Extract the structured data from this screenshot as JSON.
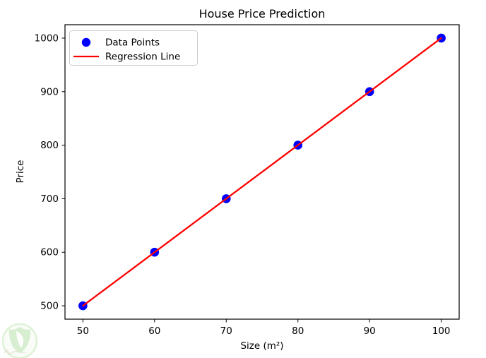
{
  "chart_data": {
    "type": "scatter",
    "title": "House Price Prediction",
    "xlabel": "Size (m²)",
    "ylabel": "Price",
    "x_ticks": [
      50,
      60,
      70,
      80,
      90,
      100
    ],
    "y_ticks": [
      500,
      600,
      700,
      800,
      900,
      1000
    ],
    "xlim": [
      47.5,
      102.5
    ],
    "ylim": [
      475,
      1025
    ],
    "grid": false,
    "legend_position": "upper left",
    "series": [
      {
        "name": "Data Points",
        "type": "scatter",
        "color": "#0000ff",
        "marker": "circle",
        "x": [
          50,
          60,
          70,
          80,
          90,
          100
        ],
        "y": [
          500,
          600,
          700,
          800,
          900,
          1000
        ]
      },
      {
        "name": "Regression Line",
        "type": "line",
        "color": "#ff0000",
        "x": [
          50,
          100
        ],
        "y": [
          500,
          1000
        ]
      }
    ]
  },
  "colors": {
    "axes_frame": "#000000",
    "legend_border": "#cccccc",
    "background": "#ffffff",
    "watermark_green": "#8fcf7d"
  },
  "watermark_icon": "leaf-shield-logo"
}
